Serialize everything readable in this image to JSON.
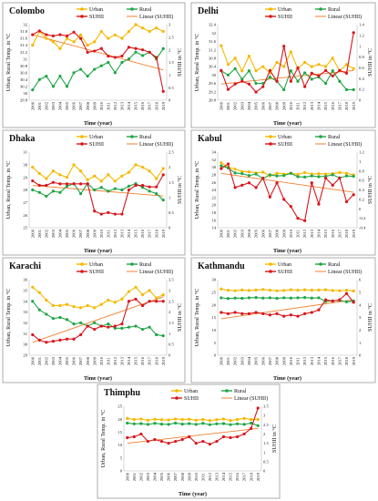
{
  "figure": {
    "xlabel": "Time (year)",
    "ylabel_left": "Urban, Rural Temp. in °C",
    "ylabel_right": "SUHII in °C",
    "legend": [
      "Urban",
      "Rural",
      "SUHII",
      "Linear (SUHII)"
    ]
  },
  "colors": {
    "urban": "#F5B800",
    "rural": "#1FA646",
    "suhii": "#D8161B",
    "trend": "#F08030"
  },
  "chart_data": [
    {
      "type": "line",
      "title": "Colombo",
      "years": [
        2000,
        2001,
        2002,
        2003,
        2004,
        2005,
        2006,
        2007,
        2008,
        2009,
        2010,
        2011,
        2012,
        2013,
        2014,
        2015,
        2016,
        2017,
        2018,
        2019
      ],
      "left_ticks": [
        "29.8",
        "30",
        "30.2",
        "30.4",
        "30.6",
        "30.8",
        "31",
        "31.2",
        "31.4",
        "31.6",
        "31.8",
        "32"
      ],
      "ylim_left": [
        29.8,
        32
      ],
      "right_ticks": [
        "0",
        "0.5",
        "1",
        "1.5",
        "2",
        "2.5",
        "3"
      ],
      "ylim_right": [
        0,
        3
      ],
      "series": [
        {
          "name": "Urban",
          "axis": "left",
          "values": [
            31.4,
            31.8,
            31.6,
            31.5,
            31.3,
            31.6,
            31.5,
            31.7,
            31.4,
            31.5,
            31.8,
            31.6,
            31.7,
            31.6,
            31.8,
            32.0,
            31.9,
            31.8,
            31.9,
            31.8
          ]
        },
        {
          "name": "Rural",
          "axis": "left",
          "values": [
            30.1,
            30.4,
            30.5,
            30.2,
            30.5,
            30.2,
            30.6,
            30.7,
            30.5,
            30.7,
            30.8,
            30.9,
            30.6,
            30.9,
            31.0,
            31.2,
            31.1,
            31.2,
            31.0,
            31.3
          ]
        },
        {
          "name": "SUHII",
          "axis": "right",
          "values": [
            2.6,
            2.75,
            2.6,
            2.55,
            2.6,
            2.55,
            2.7,
            2.45,
            1.9,
            1.95,
            2.05,
            1.75,
            1.7,
            1.75,
            2.1,
            2.05,
            2.0,
            1.9,
            1.7,
            0.35
          ]
        }
      ],
      "trend": [
        2.6,
        1.2
      ]
    },
    {
      "type": "line",
      "title": "Delhi",
      "years": [
        2000,
        2001,
        2002,
        2003,
        2004,
        2005,
        2006,
        2007,
        2008,
        2009,
        2010,
        2011,
        2012,
        2013,
        2014,
        2015,
        2016,
        2017,
        2018,
        2019
      ],
      "left_ticks": [
        "28.8",
        "29.2",
        "29.6",
        "30",
        "30.4",
        "30.8",
        "31.2",
        "31.6",
        "32",
        "32.4"
      ],
      "ylim_left": [
        28.8,
        32.4
      ],
      "right_ticks": [
        "0",
        "0.2",
        "0.4",
        "0.6",
        "0.8",
        "1",
        "1.2",
        "1.4"
      ],
      "ylim_right": [
        0,
        1.4
      ],
      "series": [
        {
          "name": "Urban",
          "axis": "left",
          "values": [
            31.4,
            30.5,
            30.8,
            30.2,
            30.9,
            30.2,
            30.4,
            30.1,
            30.6,
            30.4,
            31.1,
            30.3,
            30.6,
            30.4,
            30.5,
            30.4,
            30.8,
            30.2,
            30.5,
            30.3
          ]
        },
        {
          "name": "Rural",
          "axis": "left",
          "values": [
            30.2,
            30.0,
            30.3,
            29.8,
            30.2,
            29.6,
            29.6,
            29.9,
            29.7,
            29.3,
            30.2,
            29.7,
            30.1,
            29.8,
            29.9,
            29.6,
            30.2,
            29.7,
            29.3,
            29.3
          ]
        },
        {
          "name": "SUHII",
          "axis": "right",
          "values": [
            0.55,
            0.2,
            0.3,
            0.35,
            0.3,
            0.15,
            0.25,
            0.55,
            0.35,
            1.0,
            0.35,
            0.6,
            0.25,
            0.5,
            0.45,
            0.55,
            0.45,
            0.55,
            0.5,
            1.25
          ]
        }
      ],
      "trend": [
        0.3,
        0.55
      ]
    },
    {
      "type": "line",
      "title": "Dhaka",
      "years": [
        2000,
        2001,
        2002,
        2003,
        2004,
        2005,
        2006,
        2007,
        2008,
        2009,
        2010,
        2011,
        2012,
        2013,
        2014,
        2015,
        2016,
        2017,
        2018,
        2019
      ],
      "left_ticks": [
        "25",
        "26",
        "27",
        "28",
        "29",
        "30",
        "31"
      ],
      "ylim_left": [
        25,
        31
      ],
      "right_ticks": [
        "0",
        "0.5",
        "1",
        "1.5",
        "2",
        "2.5"
      ],
      "ylim_right": [
        0,
        2.5
      ],
      "series": [
        {
          "name": "Urban",
          "axis": "left",
          "values": [
            29.8,
            29.3,
            28.9,
            29.5,
            29.2,
            29.0,
            30.0,
            29.5,
            28.8,
            29.1,
            28.7,
            29.2,
            28.7,
            29.1,
            29.4,
            30.0,
            29.8,
            29.5,
            28.9,
            29.7
          ]
        },
        {
          "name": "Rural",
          "axis": "left",
          "values": [
            28.0,
            27.8,
            27.5,
            27.9,
            27.8,
            28.3,
            28.5,
            27.7,
            28.5,
            28.0,
            28.2,
            27.9,
            28.1,
            28.0,
            28.3,
            28.5,
            28.2,
            27.9,
            27.7,
            27.2
          ]
        },
        {
          "name": "SUHII",
          "axis": "right",
          "values": [
            1.55,
            1.4,
            1.4,
            1.5,
            1.45,
            1.45,
            1.45,
            1.45,
            1.45,
            0.55,
            0.45,
            0.5,
            0.45,
            0.45,
            1.25,
            1.4,
            1.4,
            1.35,
            1.35,
            1.75
          ]
        }
      ],
      "trend": [
        1.4,
        1.05
      ]
    },
    {
      "type": "line",
      "title": "Kabul",
      "years": [
        2000,
        2001,
        2002,
        2003,
        2004,
        2005,
        2006,
        2007,
        2008,
        2009,
        2010,
        2011,
        2012,
        2013,
        2014,
        2015,
        2016,
        2017,
        2018,
        2019
      ],
      "left_ticks": [
        "14",
        "16",
        "18",
        "20",
        "22",
        "24",
        "26",
        "28",
        "30",
        "32",
        "34"
      ],
      "ylim_left": [
        14,
        34
      ],
      "right_ticks": [
        "-0.4",
        "-0.2",
        "0",
        "0.2",
        "0.4",
        "0.6",
        "0.8",
        "1",
        "1.2"
      ],
      "ylim_right": [
        -0.4,
        1.2
      ],
      "series": [
        {
          "name": "Urban",
          "axis": "left",
          "values": [
            31.2,
            30.0,
            29.5,
            28.9,
            28.8,
            28.5,
            28.7,
            27.7,
            28.4,
            28.2,
            28.4,
            28.1,
            28.6,
            28.2,
            28.3,
            28.2,
            28.3,
            28.6,
            28.4,
            28.0
          ]
        },
        {
          "name": "Rural",
          "axis": "left",
          "values": [
            30.4,
            29.8,
            28.5,
            28.3,
            27.8,
            28.2,
            27.0,
            28.0,
            27.7,
            27.8,
            28.4,
            27.5,
            27.4,
            27.7,
            27.5,
            27.6,
            28.0,
            27.2,
            27.7,
            27.6
          ]
        },
        {
          "name": "SUHII",
          "axis": "right",
          "values": [
            0.85,
            0.95,
            0.45,
            0.5,
            0.55,
            0.45,
            0.65,
            0.25,
            0.55,
            0.2,
            0.05,
            -0.2,
            -0.25,
            0.55,
            0.1,
            0.65,
            0.5,
            0.65,
            0.15,
            0.3
          ]
        }
      ],
      "trend": [
        0.75,
        0.35
      ]
    },
    {
      "type": "line",
      "title": "Karachi",
      "years": [
        2000,
        2001,
        2002,
        2003,
        2004,
        2005,
        2006,
        2007,
        2008,
        2009,
        2010,
        2011,
        2012,
        2013,
        2014,
        2015,
        2016,
        2017,
        2018,
        2019
      ],
      "left_ticks": [
        "29",
        "30",
        "31",
        "32",
        "33",
        "34",
        "35",
        "36"
      ],
      "ylim_left": [
        29,
        36
      ],
      "right_ticks": [
        "0",
        "0.5",
        "1",
        "1.5",
        "2",
        "2.5",
        "3",
        "3.5"
      ],
      "ylim_right": [
        0,
        3.5
      ],
      "series": [
        {
          "name": "Urban",
          "axis": "left",
          "values": [
            35.3,
            34.8,
            34.1,
            33.6,
            33.6,
            33.7,
            33.5,
            33.4,
            33.6,
            33.4,
            33.7,
            34.1,
            33.9,
            34.2,
            34.9,
            35.3,
            34.6,
            35.0,
            34.3,
            34.6
          ]
        },
        {
          "name": "Rural",
          "axis": "left",
          "values": [
            34.0,
            33.2,
            32.8,
            32.4,
            32.5,
            32.3,
            31.9,
            32.0,
            31.7,
            32.0,
            31.7,
            31.9,
            31.5,
            31.5,
            31.6,
            31.7,
            31.4,
            31.6,
            30.9,
            30.8
          ]
        },
        {
          "name": "SUHII",
          "axis": "right",
          "values": [
            0.95,
            0.7,
            0.6,
            0.65,
            0.7,
            0.75,
            0.75,
            0.95,
            1.35,
            1.2,
            1.35,
            1.3,
            1.35,
            1.45,
            2.5,
            2.6,
            2.3,
            2.5,
            2.5,
            2.5
          ]
        }
      ],
      "trend": [
        0.6,
        2.7
      ]
    },
    {
      "type": "line",
      "title": "Kathmandu",
      "years": [
        2000,
        2001,
        2002,
        2003,
        2004,
        2005,
        2006,
        2007,
        2008,
        2009,
        2010,
        2011,
        2012,
        2013,
        2014,
        2015,
        2016,
        2017,
        2018,
        2019
      ],
      "left_ticks": [
        "0",
        "5",
        "10",
        "15",
        "20",
        "25",
        "30"
      ],
      "ylim_left": [
        0,
        30
      ],
      "right_ticks": [
        "0",
        "1",
        "2",
        "3",
        "4",
        "5",
        "6"
      ],
      "ylim_right": [
        0,
        6
      ],
      "series": [
        {
          "name": "Urban",
          "axis": "left",
          "values": [
            26.3,
            25.8,
            25.6,
            25.9,
            25.7,
            25.9,
            26.1,
            25.8,
            25.6,
            25.7,
            26.0,
            25.8,
            26.0,
            25.8,
            25.9,
            26.0,
            25.7,
            25.6,
            25.8,
            25.5
          ]
        },
        {
          "name": "Rural",
          "axis": "left",
          "values": [
            22.8,
            22.5,
            22.7,
            22.6,
            22.8,
            22.9,
            22.7,
            22.8,
            22.6,
            22.8,
            22.7,
            22.8,
            22.9,
            22.7,
            22.8,
            21.3,
            21.6,
            21.8,
            21.2,
            21.5
          ]
        },
        {
          "name": "SUHII",
          "axis": "right",
          "values": [
            3.4,
            3.3,
            3.4,
            3.3,
            3.3,
            3.4,
            3.3,
            3.2,
            3.3,
            3.1,
            3.2,
            3.1,
            3.3,
            3.4,
            3.6,
            4.4,
            4.3,
            4.4,
            4.9,
            4.2
          ]
        }
      ],
      "trend": [
        2.9,
        4.4
      ]
    },
    {
      "type": "line",
      "title": "Thimphu",
      "years": [
        2000,
        2001,
        2002,
        2003,
        2004,
        2005,
        2006,
        2007,
        2008,
        2009,
        2010,
        2011,
        2012,
        2013,
        2014,
        2015,
        2016,
        2017,
        2018,
        2019
      ],
      "left_ticks": [
        "0",
        "5",
        "10",
        "15",
        "20",
        "25"
      ],
      "ylim_left": [
        0,
        25
      ],
      "right_ticks": [
        "0",
        "0.5",
        "1",
        "1.5",
        "2",
        "2.5",
        "3",
        "3.5"
      ],
      "ylim_right": [
        0,
        3.5
      ],
      "series": [
        {
          "name": "Urban",
          "axis": "left",
          "values": [
            20.3,
            19.9,
            20.1,
            19.6,
            20.0,
            19.8,
            19.7,
            20.1,
            19.9,
            20.0,
            19.6,
            19.9,
            19.5,
            19.8,
            20.1,
            19.5,
            19.9,
            20.3,
            19.9,
            19.9
          ]
        },
        {
          "name": "Rural",
          "axis": "left",
          "values": [
            18.5,
            18.2,
            18.3,
            18.0,
            18.4,
            18.1,
            18.0,
            18.5,
            18.1,
            18.3,
            18.0,
            18.4,
            17.9,
            18.2,
            18.3,
            17.9,
            18.2,
            18.0,
            18.5,
            17.5
          ]
        },
        {
          "name": "SUHII",
          "axis": "right",
          "values": [
            1.8,
            1.85,
            2.0,
            1.6,
            1.7,
            1.6,
            1.5,
            1.6,
            1.7,
            1.85,
            1.5,
            1.6,
            1.45,
            1.6,
            1.85,
            1.8,
            1.85,
            2.0,
            2.3,
            3.4
          ]
        }
      ],
      "trend": [
        1.5,
        2.3
      ]
    }
  ]
}
